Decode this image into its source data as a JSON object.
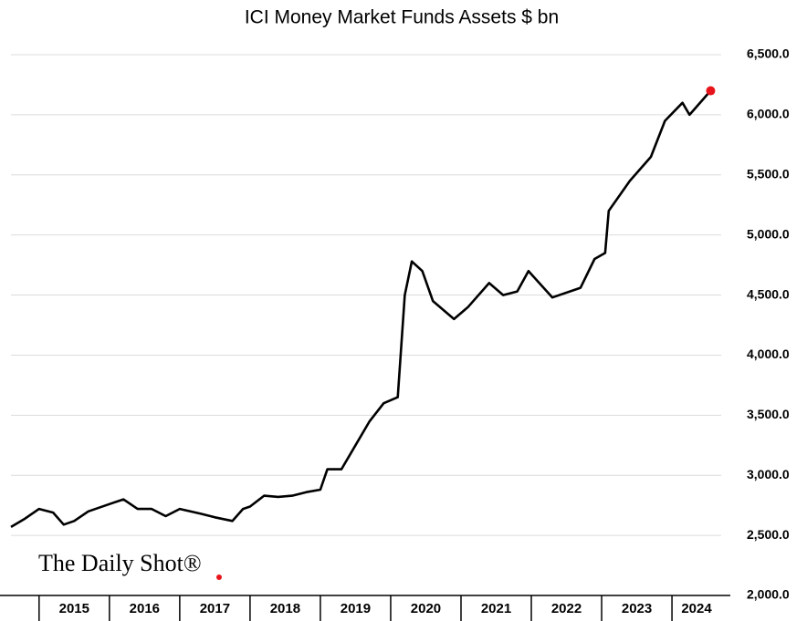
{
  "chart_data": {
    "type": "line",
    "title": "ICI Money Market Funds Assets $ bn",
    "watermark": "The Daily Shot®",
    "x": [
      2014.6,
      2014.8,
      2015.0,
      2015.2,
      2015.35,
      2015.5,
      2015.7,
      2016.0,
      2016.2,
      2016.4,
      2016.6,
      2016.8,
      2017.0,
      2017.3,
      2017.5,
      2017.75,
      2017.9,
      2018.0,
      2018.2,
      2018.4,
      2018.6,
      2018.8,
      2019.0,
      2019.1,
      2019.3,
      2019.5,
      2019.7,
      2019.9,
      2020.1,
      2020.2,
      2020.3,
      2020.45,
      2020.6,
      2020.9,
      2021.1,
      2021.4,
      2021.6,
      2021.8,
      2021.96,
      2022.3,
      2022.7,
      2022.9,
      2023.05,
      2023.1,
      2023.4,
      2023.7,
      2023.9,
      2024.15,
      2024.25,
      2024.55
    ],
    "series": [
      {
        "name": "ICI Money Market Funds Assets",
        "color": "#000000",
        "values": [
          2570,
          2640,
          2720,
          2690,
          2590,
          2620,
          2700,
          2760,
          2800,
          2720,
          2720,
          2660,
          2720,
          2680,
          2650,
          2620,
          2720,
          2740,
          2830,
          2820,
          2830,
          2860,
          2880,
          3050,
          3050,
          3250,
          3450,
          3600,
          3650,
          4500,
          4780,
          4700,
          4450,
          4300,
          4400,
          4600,
          4500,
          4530,
          4700,
          4480,
          4560,
          4800,
          4850,
          5200,
          5450,
          5650,
          5950,
          6100,
          6000,
          6200
        ]
      }
    ],
    "last_marker_color": "#e8141b",
    "xlim": [
      2014.6,
      2024.7
    ],
    "xticks": [
      {
        "value": 2015.5,
        "label": "2015"
      },
      {
        "value": 2016.5,
        "label": "2016"
      },
      {
        "value": 2017.5,
        "label": "2017"
      },
      {
        "value": 2018.5,
        "label": "2018"
      },
      {
        "value": 2019.5,
        "label": "2019"
      },
      {
        "value": 2020.5,
        "label": "2020"
      },
      {
        "value": 2021.5,
        "label": "2021"
      },
      {
        "value": 2022.5,
        "label": "2022"
      },
      {
        "value": 2023.5,
        "label": "2023"
      },
      {
        "value": 2024.35,
        "label": "2024"
      }
    ],
    "ylim": [
      2000,
      6500
    ],
    "yticks": [
      {
        "value": 2000,
        "label": "2,000.0"
      },
      {
        "value": 2500,
        "label": "2,500.0"
      },
      {
        "value": 3000,
        "label": "3,000.0"
      },
      {
        "value": 3500,
        "label": "3,500.0"
      },
      {
        "value": 4000,
        "label": "4,000.0"
      },
      {
        "value": 4500,
        "label": "4,500.0"
      },
      {
        "value": 5000,
        "label": "5,000.0"
      },
      {
        "value": 5500,
        "label": "5,500.0"
      },
      {
        "value": 6000,
        "label": "6,000.0"
      },
      {
        "value": 6500,
        "label": "6,500.0"
      }
    ],
    "grid": true
  }
}
